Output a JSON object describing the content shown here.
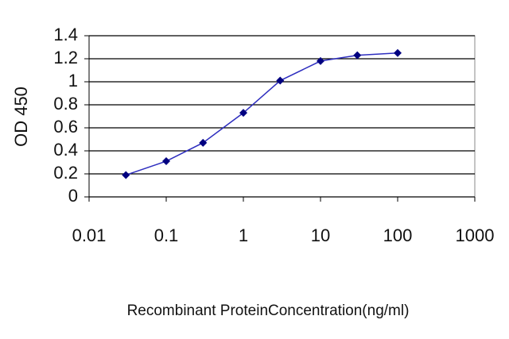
{
  "chart_data": {
    "type": "line",
    "x_label": "Recombinant ProteinConcentration(ng/ml)",
    "y_label": "OD 450",
    "x": [
      0.03,
      0.1,
      0.3,
      1,
      3,
      10,
      30,
      100
    ],
    "series": [
      {
        "color": "#2e2ebf",
        "marker_color": "#000080",
        "values": [
          0.19,
          0.31,
          0.47,
          0.73,
          1.01,
          1.18,
          1.23,
          1.25
        ]
      }
    ],
    "xscale": "log",
    "xlim": [
      0.01,
      1000
    ],
    "xticks": [
      0.01,
      0.1,
      1,
      10,
      100,
      1000
    ],
    "ylim": [
      0,
      1.4
    ],
    "yticks": [
      0,
      0.2,
      0.4,
      0.6,
      0.8,
      1,
      1.2,
      1.4
    ],
    "grid": true
  }
}
